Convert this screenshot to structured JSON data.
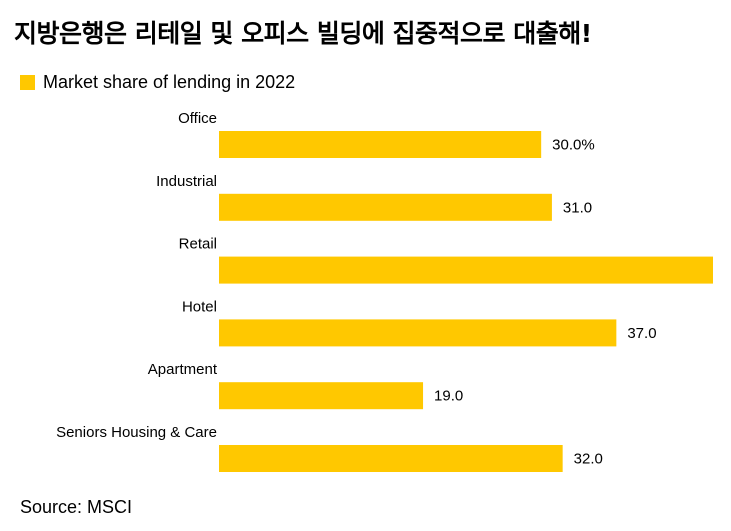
{
  "title": "지방은행은 리테일 및 오피스 빌딩에 집중적으로 대출해!",
  "source": "Source: MSCI",
  "colors": {
    "bar": "#FFC800",
    "text": "#000000",
    "background": "#FFFFFF"
  },
  "chart_data": {
    "type": "bar",
    "orientation": "horizontal",
    "title": "지방은행은 리테일 및 오피스 빌딩에 집중적으로 대출해!",
    "legend": [
      "Market share of lending in 2022"
    ],
    "legend_position": "top-left",
    "categories": [
      "Office",
      "Industrial",
      "Retail",
      "Hotel",
      "Apartment",
      "Seniors Housing & Care"
    ],
    "values": [
      30.0,
      31.0,
      46.0,
      37.0,
      19.0,
      32.0
    ],
    "value_labels": [
      "30.0%",
      "31.0",
      "",
      "37.0",
      "19.0",
      "32.0"
    ],
    "unit": "%",
    "xlim": [
      0,
      46
    ],
    "grid": false,
    "xlabel": "",
    "ylabel": ""
  }
}
